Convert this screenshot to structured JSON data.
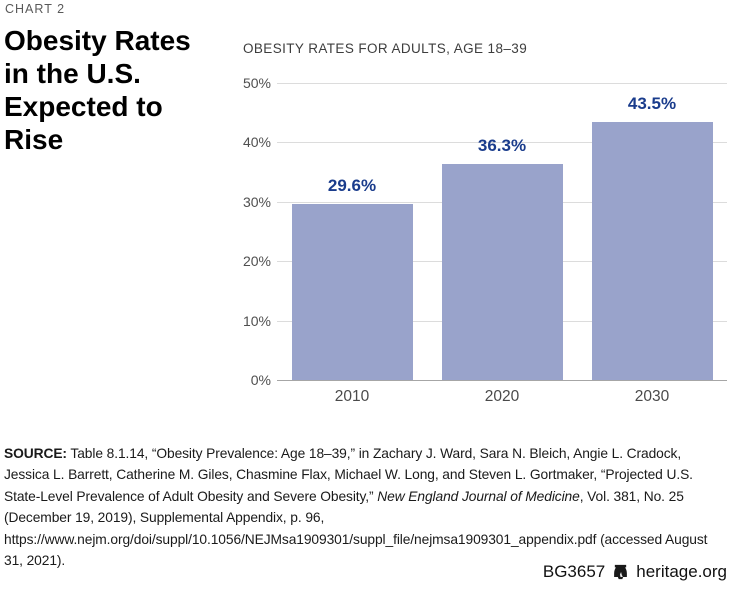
{
  "page": {
    "kicker": "CHART 2",
    "title": "Obesity Rates in the U.S. Expected to Rise"
  },
  "chart_data": {
    "type": "bar",
    "title": "OBESITY RATES FOR ADULTS, AGE 18–39",
    "categories": [
      "2010",
      "2020",
      "2030"
    ],
    "values": [
      29.6,
      36.3,
      43.5
    ],
    "value_labels": [
      "29.6%",
      "36.3%",
      "43.5%"
    ],
    "xlabel": "",
    "ylabel": "",
    "ylim": [
      0,
      50
    ],
    "yticks": [
      0,
      10,
      20,
      30,
      40,
      50
    ],
    "ytick_suffix": "%",
    "grid": true,
    "legend": "none",
    "bar_color": "#99a3cb",
    "value_label_color": "#1a3c8c"
  },
  "source": {
    "label": "SOURCE:",
    "text_before_italic": " Table 8.1.14, “Obesity Prevalence: Age 18–39,” in Zachary J. Ward, Sara N. Bleich, Angie L. Cradock, Jessica L. Barrett, Catherine M. Giles, Chasmine Flax, Michael W. Long, and Steven L. Gortmaker, “Projected U.S. State-Level Prevalence of Adult Obesity and Severe Obesity,” ",
    "italic": "New England Journal of Medicine",
    "text_after_italic": ", Vol. 381, No. 25 (December 19, 2019), Supplemental Appendix, p. 96, https://www.nejm.org/doi/suppl/10.1056/NEJMsa1909301/suppl_file/nejmsa1909301_appendix.pdf (accessed August 31, 2021)."
  },
  "footer": {
    "report_id": "BG3657",
    "site": "heritage.org",
    "bell_icon": "liberty-bell-icon"
  }
}
